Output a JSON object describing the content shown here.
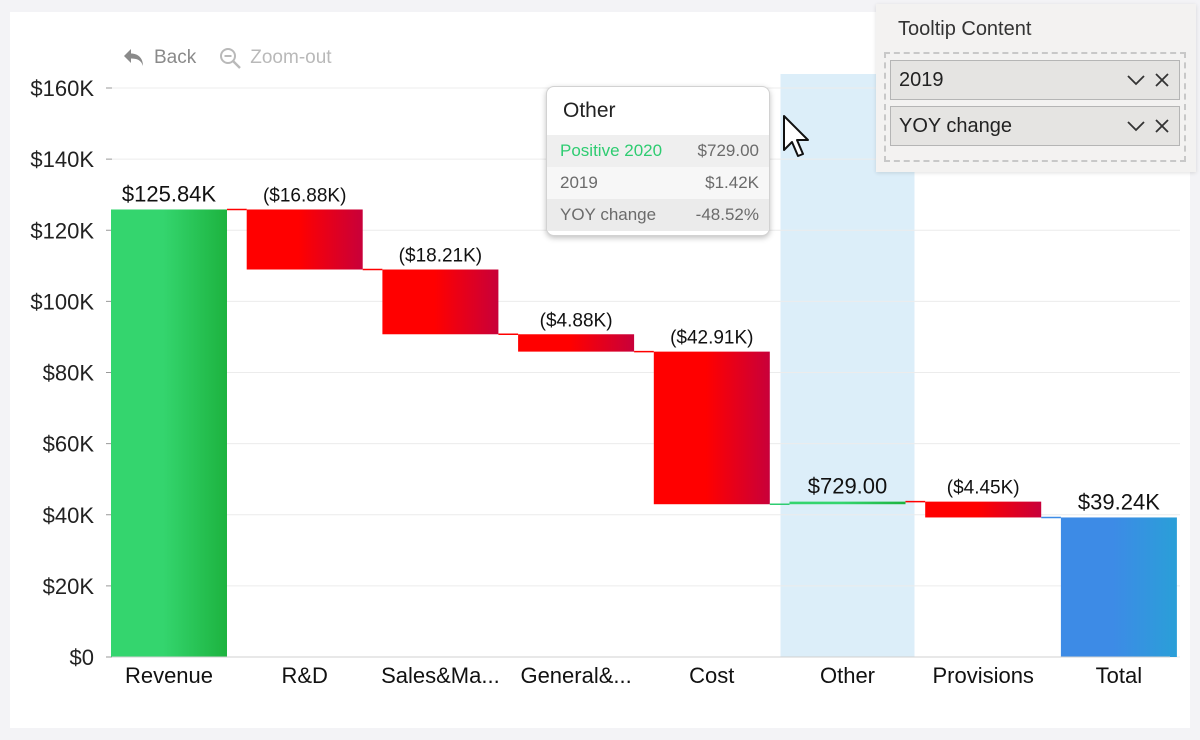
{
  "toolbar": {
    "back_label": "Back",
    "zoomout_label": "Zoom-out"
  },
  "tooltip": {
    "title": "Other",
    "rows": [
      {
        "label": "Positive 2020",
        "value": "$729.00",
        "color": "#2ecc71"
      },
      {
        "label": "2019",
        "value": "$1.42K",
        "color": "#6b6b6b"
      },
      {
        "label": "YOY change",
        "value": "-48.52%",
        "color": "#6b6b6b"
      }
    ]
  },
  "panel": {
    "title": "Tooltip Content",
    "fields": [
      {
        "label": "2019",
        "icons": [
          "chevron-down-icon",
          "close-icon"
        ]
      },
      {
        "label": "YOY change",
        "icons": [
          "chevron-down-icon",
          "close-icon"
        ]
      }
    ]
  },
  "colors": {
    "positive": "#2ecc71",
    "negative": "#ff0000",
    "negative_dark": "#c8003a",
    "total": "#3d8be6",
    "highlight": "#dceef9"
  },
  "chart_data": {
    "type": "bar",
    "subtype": "waterfall",
    "categories": [
      "Revenue",
      "R&D",
      "Sales&Ma...",
      "General&...",
      "Cost",
      "Other",
      "Provisions",
      "Total"
    ],
    "deltas": [
      125840,
      -16880,
      -18210,
      -4880,
      -42910,
      729,
      -4450,
      39240
    ],
    "kinds": [
      "start",
      "negative",
      "negative",
      "negative",
      "negative",
      "positive",
      "negative",
      "total"
    ],
    "data_labels": [
      "$125.84K",
      "($16.88K)",
      "($18.21K)",
      "($4.88K)",
      "($42.91K)",
      "$729.00",
      "($4.45K)",
      "$39.24K"
    ],
    "ylim": [
      0,
      160000
    ],
    "yticks": [
      0,
      20000,
      40000,
      60000,
      80000,
      100000,
      120000,
      140000,
      160000
    ],
    "ytick_labels": [
      "$0",
      "$20K",
      "$40K",
      "$60K",
      "$80K",
      "$100K",
      "$120K",
      "$140K",
      "$160K"
    ],
    "highlighted_category": "Other",
    "grid": true
  }
}
